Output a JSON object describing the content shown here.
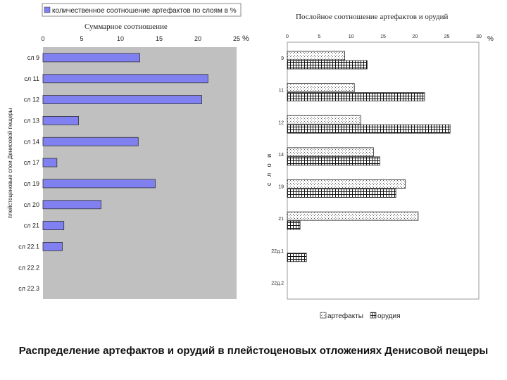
{
  "caption": "Распределение артефактов и орудий в плейстоценовых отложениях Денисовой пещеры",
  "chart_data": [
    {
      "type": "bar",
      "orientation": "horizontal",
      "title": "Суммарное соотношение",
      "legend_label": "количественное соотношение артефактов по слоям в %",
      "ylabel": "плейстоценовые слои Денисовой пещеры",
      "unit_label": "%",
      "xlim": [
        0,
        25
      ],
      "xticks": [
        "0",
        "5",
        "10",
        "15",
        "20",
        "25"
      ],
      "categories": [
        "сл 9",
        "сл 11",
        "сл 12",
        "сл 13",
        "сл 14",
        "сл 17",
        "сл 19",
        "сл 20",
        "сл 21",
        "сл 22.1",
        "сл 22.2",
        "сл 22.3"
      ],
      "values": [
        12.5,
        21.3,
        20.5,
        4.6,
        12.3,
        1.8,
        14.5,
        7.5,
        2.7,
        2.5,
        0,
        0
      ],
      "bar_color": "#8080f0",
      "plot_bg": "#c0c0c0"
    },
    {
      "type": "bar",
      "orientation": "horizontal",
      "title": "Послойное соотношение артефактов и орудий",
      "ylabel": "с л о и",
      "unit_label": "%",
      "xlim": [
        0,
        30
      ],
      "xticks": [
        "0",
        "5",
        "10",
        "15",
        "20",
        "25",
        "30"
      ],
      "categories": [
        "9",
        "11",
        "12",
        "14",
        "19",
        "21",
        "22д.1",
        "22д.2"
      ],
      "series": [
        {
          "name": "артефакты",
          "values": [
            9,
            10.5,
            11.5,
            13.5,
            18.5,
            20.5,
            0,
            0
          ]
        },
        {
          "name": "орудия",
          "values": [
            12.5,
            21.5,
            25.5,
            14.5,
            17,
            2,
            3,
            0
          ]
        }
      ],
      "plot_bg": "#ffffff"
    }
  ]
}
